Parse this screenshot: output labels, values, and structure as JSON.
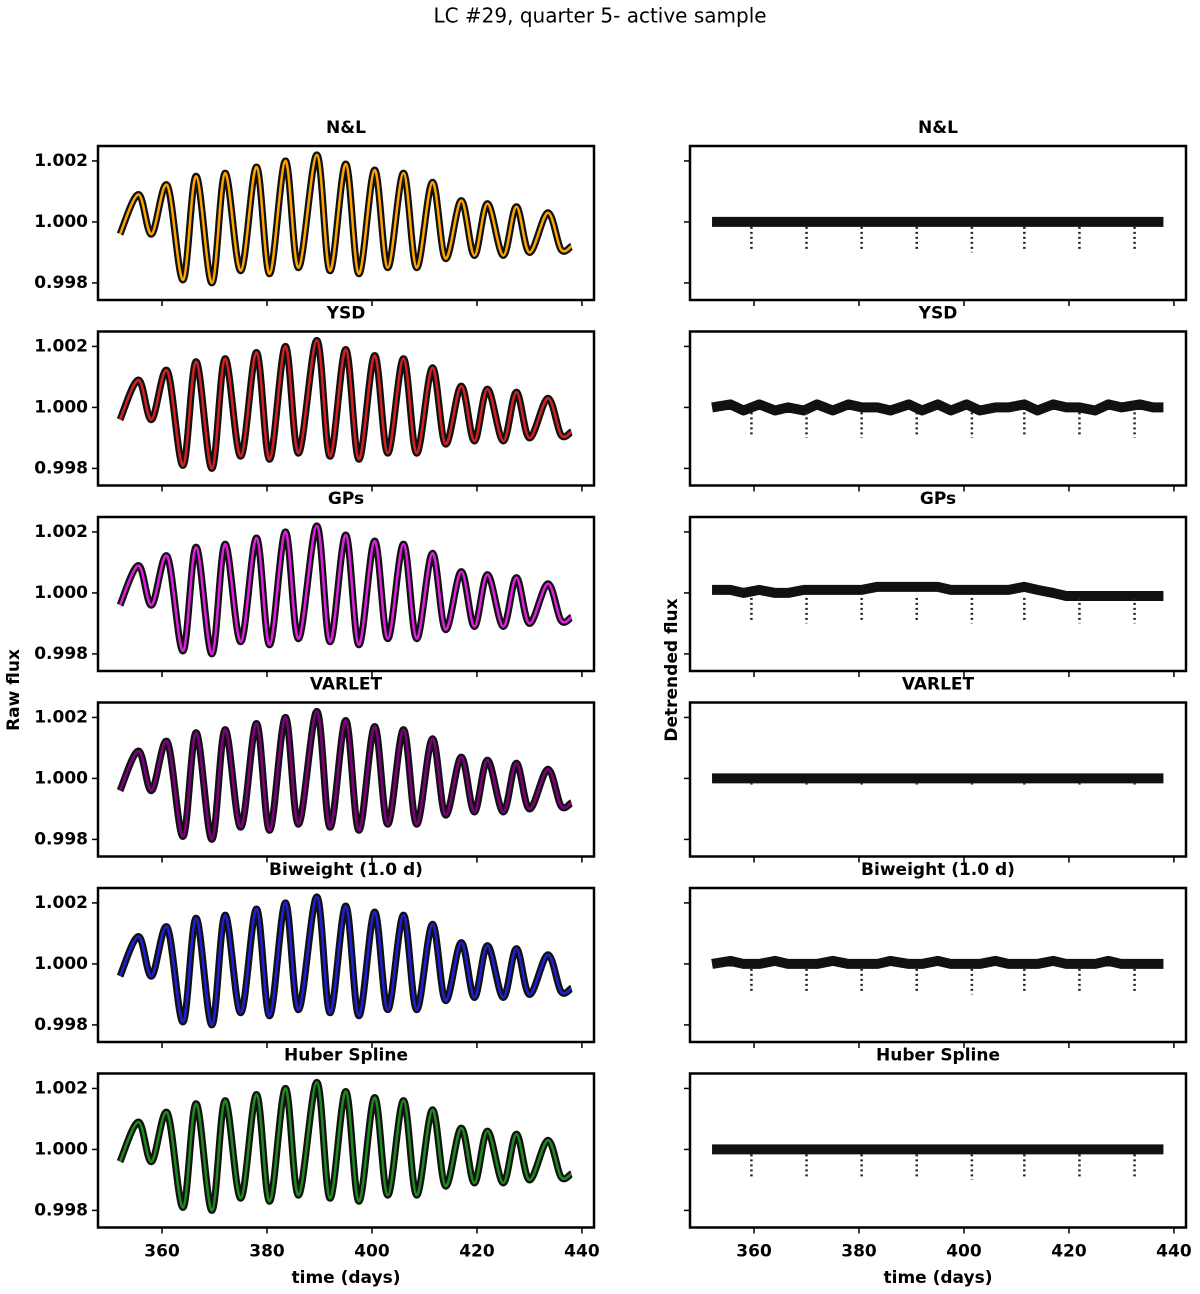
{
  "chart_data": {
    "type": "line",
    "title": "LC #29, quarter 5- active sample",
    "xlabel": "time (days)",
    "raw_ylabel": "Raw flux",
    "detrended_ylabel": "Detrended flux",
    "xlim": [
      347.8,
      442.3
    ],
    "xticks": [
      360,
      380,
      400,
      420,
      440
    ],
    "ylim": [
      0.99744,
      1.00249
    ],
    "yticks": [
      0.998,
      {
        "value": 1.0,
        "label": "1.000"
      },
      1.002
    ],
    "x": [
      352,
      355.5,
      358,
      361,
      364,
      366.5,
      369.5,
      372,
      375,
      378,
      380.5,
      383.5,
      386,
      389.5,
      392,
      395,
      397.5,
      400.5,
      403,
      406,
      408.5,
      411.5,
      414,
      417,
      419.5,
      422,
      425,
      427.5,
      430,
      433.5,
      436,
      438
    ],
    "raw": [
      0.9996,
      1.0009,
      0.9996,
      1.0012,
      0.9981,
      1.0015,
      0.998,
      1.0016,
      0.9984,
      1.0018,
      0.9983,
      1.002,
      0.9985,
      1.0022,
      0.9984,
      1.0019,
      0.9983,
      1.0017,
      0.9985,
      1.0016,
      0.9985,
      1.0013,
      0.9988,
      1.0007,
      0.9989,
      1.0006,
      0.9989,
      1.0005,
      0.999,
      1.0003,
      0.9991,
      0.9992
    ],
    "transit_x": [
      359.5,
      370,
      380.5,
      391,
      401.5,
      411.5,
      422,
      432.5
    ],
    "panels": [
      {
        "title": "N&L",
        "color": "#ffa500",
        "detrended": [
          1.0,
          1.0,
          1.0,
          1.0,
          1.0,
          1.0,
          1.0,
          1.0,
          1.0,
          1.0,
          1.0,
          1.0,
          1.0,
          1.0,
          1.0,
          1.0,
          1.0,
          1.0,
          1.0,
          1.0,
          1.0,
          1.0,
          1.0,
          1.0,
          1.0,
          1.0,
          1.0,
          1.0,
          1.0,
          1.0,
          1.0,
          1.0
        ],
        "transit_depth": [
          0.9991,
          0.9991,
          0.9991,
          0.9991,
          0.999,
          0.9991,
          0.9991,
          0.9991
        ]
      },
      {
        "title": "YSD",
        "color": "#d42020",
        "detrended": [
          1.0,
          1.0001,
          0.9999,
          1.0001,
          0.9999,
          1.0,
          0.9999,
          1.0001,
          0.9999,
          1.0001,
          1.0,
          1.0,
          0.9999,
          1.0001,
          0.9999,
          1.0001,
          0.9999,
          1.0001,
          0.9999,
          1.0,
          1.0,
          1.0001,
          0.9999,
          1.0001,
          1.0,
          1.0,
          0.9999,
          1.0001,
          1.0,
          1.0001,
          1.0,
          1.0
        ],
        "transit_depth": [
          0.9991,
          0.999,
          0.999,
          0.9991,
          0.999,
          0.9991,
          0.9991,
          0.999
        ]
      },
      {
        "title": "GPs",
        "color": "#e020e0",
        "detrended": [
          1.0001,
          1.0001,
          1.0,
          1.0001,
          1.0,
          1.0,
          1.0001,
          1.0001,
          1.0001,
          1.0001,
          1.0001,
          1.0002,
          1.0002,
          1.0002,
          1.0002,
          1.0002,
          1.0001,
          1.0001,
          1.0001,
          1.0001,
          1.0001,
          1.0002,
          1.0001,
          1.0,
          0.9999,
          0.9999,
          0.9999,
          0.9999,
          0.9999,
          0.9999,
          0.9999,
          0.9999
        ],
        "transit_depth": [
          0.9991,
          0.999,
          0.9991,
          0.9991,
          0.999,
          0.9991,
          0.999,
          0.999
        ]
      },
      {
        "title": "VARLET",
        "color": "#800080",
        "detrended": [
          1.0,
          1.0,
          1.0,
          1.0,
          1.0,
          1.0,
          1.0,
          1.0,
          1.0,
          1.0,
          1.0,
          1.0,
          1.0,
          1.0,
          1.0,
          1.0,
          1.0,
          1.0,
          1.0,
          1.0,
          1.0,
          1.0,
          1.0,
          1.0,
          1.0,
          1.0,
          1.0,
          1.0,
          1.0,
          1.0,
          1.0,
          1.0
        ],
        "transit_depth": [
          0.9998,
          0.9998,
          0.9998,
          0.9998,
          0.9998,
          0.9998,
          0.9998,
          0.9998
        ]
      },
      {
        "title": "Biweight (1.0 d)",
        "color": "#1f1fd6",
        "detrended": [
          1.0,
          1.0001,
          1.0,
          1.0,
          1.0001,
          1.0,
          1.0,
          1.0,
          1.0001,
          1.0,
          1.0,
          1.0,
          1.0001,
          1.0,
          1.0,
          1.0001,
          1.0,
          1.0,
          1.0,
          1.0001,
          1.0,
          1.0,
          1.0,
          1.0001,
          1.0,
          1.0,
          1.0,
          1.0001,
          1.0,
          1.0,
          1.0,
          1.0
        ],
        "transit_depth": [
          0.9991,
          0.9991,
          0.9991,
          0.9991,
          0.999,
          0.9991,
          0.9991,
          0.9991
        ]
      },
      {
        "title": "Huber Spline",
        "color": "#1e8a1e",
        "detrended": [
          1.0,
          1.0,
          1.0,
          1.0,
          1.0,
          1.0,
          1.0,
          1.0,
          1.0,
          1.0,
          1.0,
          1.0,
          1.0,
          1.0,
          1.0,
          1.0,
          1.0,
          1.0,
          1.0,
          1.0,
          1.0,
          1.0,
          1.0,
          1.0,
          1.0,
          1.0,
          1.0,
          1.0,
          1.0,
          1.0,
          1.0,
          1.0
        ],
        "transit_depth": [
          0.9991,
          0.9991,
          0.9991,
          0.9991,
          0.999,
          0.9991,
          0.9991,
          0.9991
        ]
      }
    ]
  }
}
